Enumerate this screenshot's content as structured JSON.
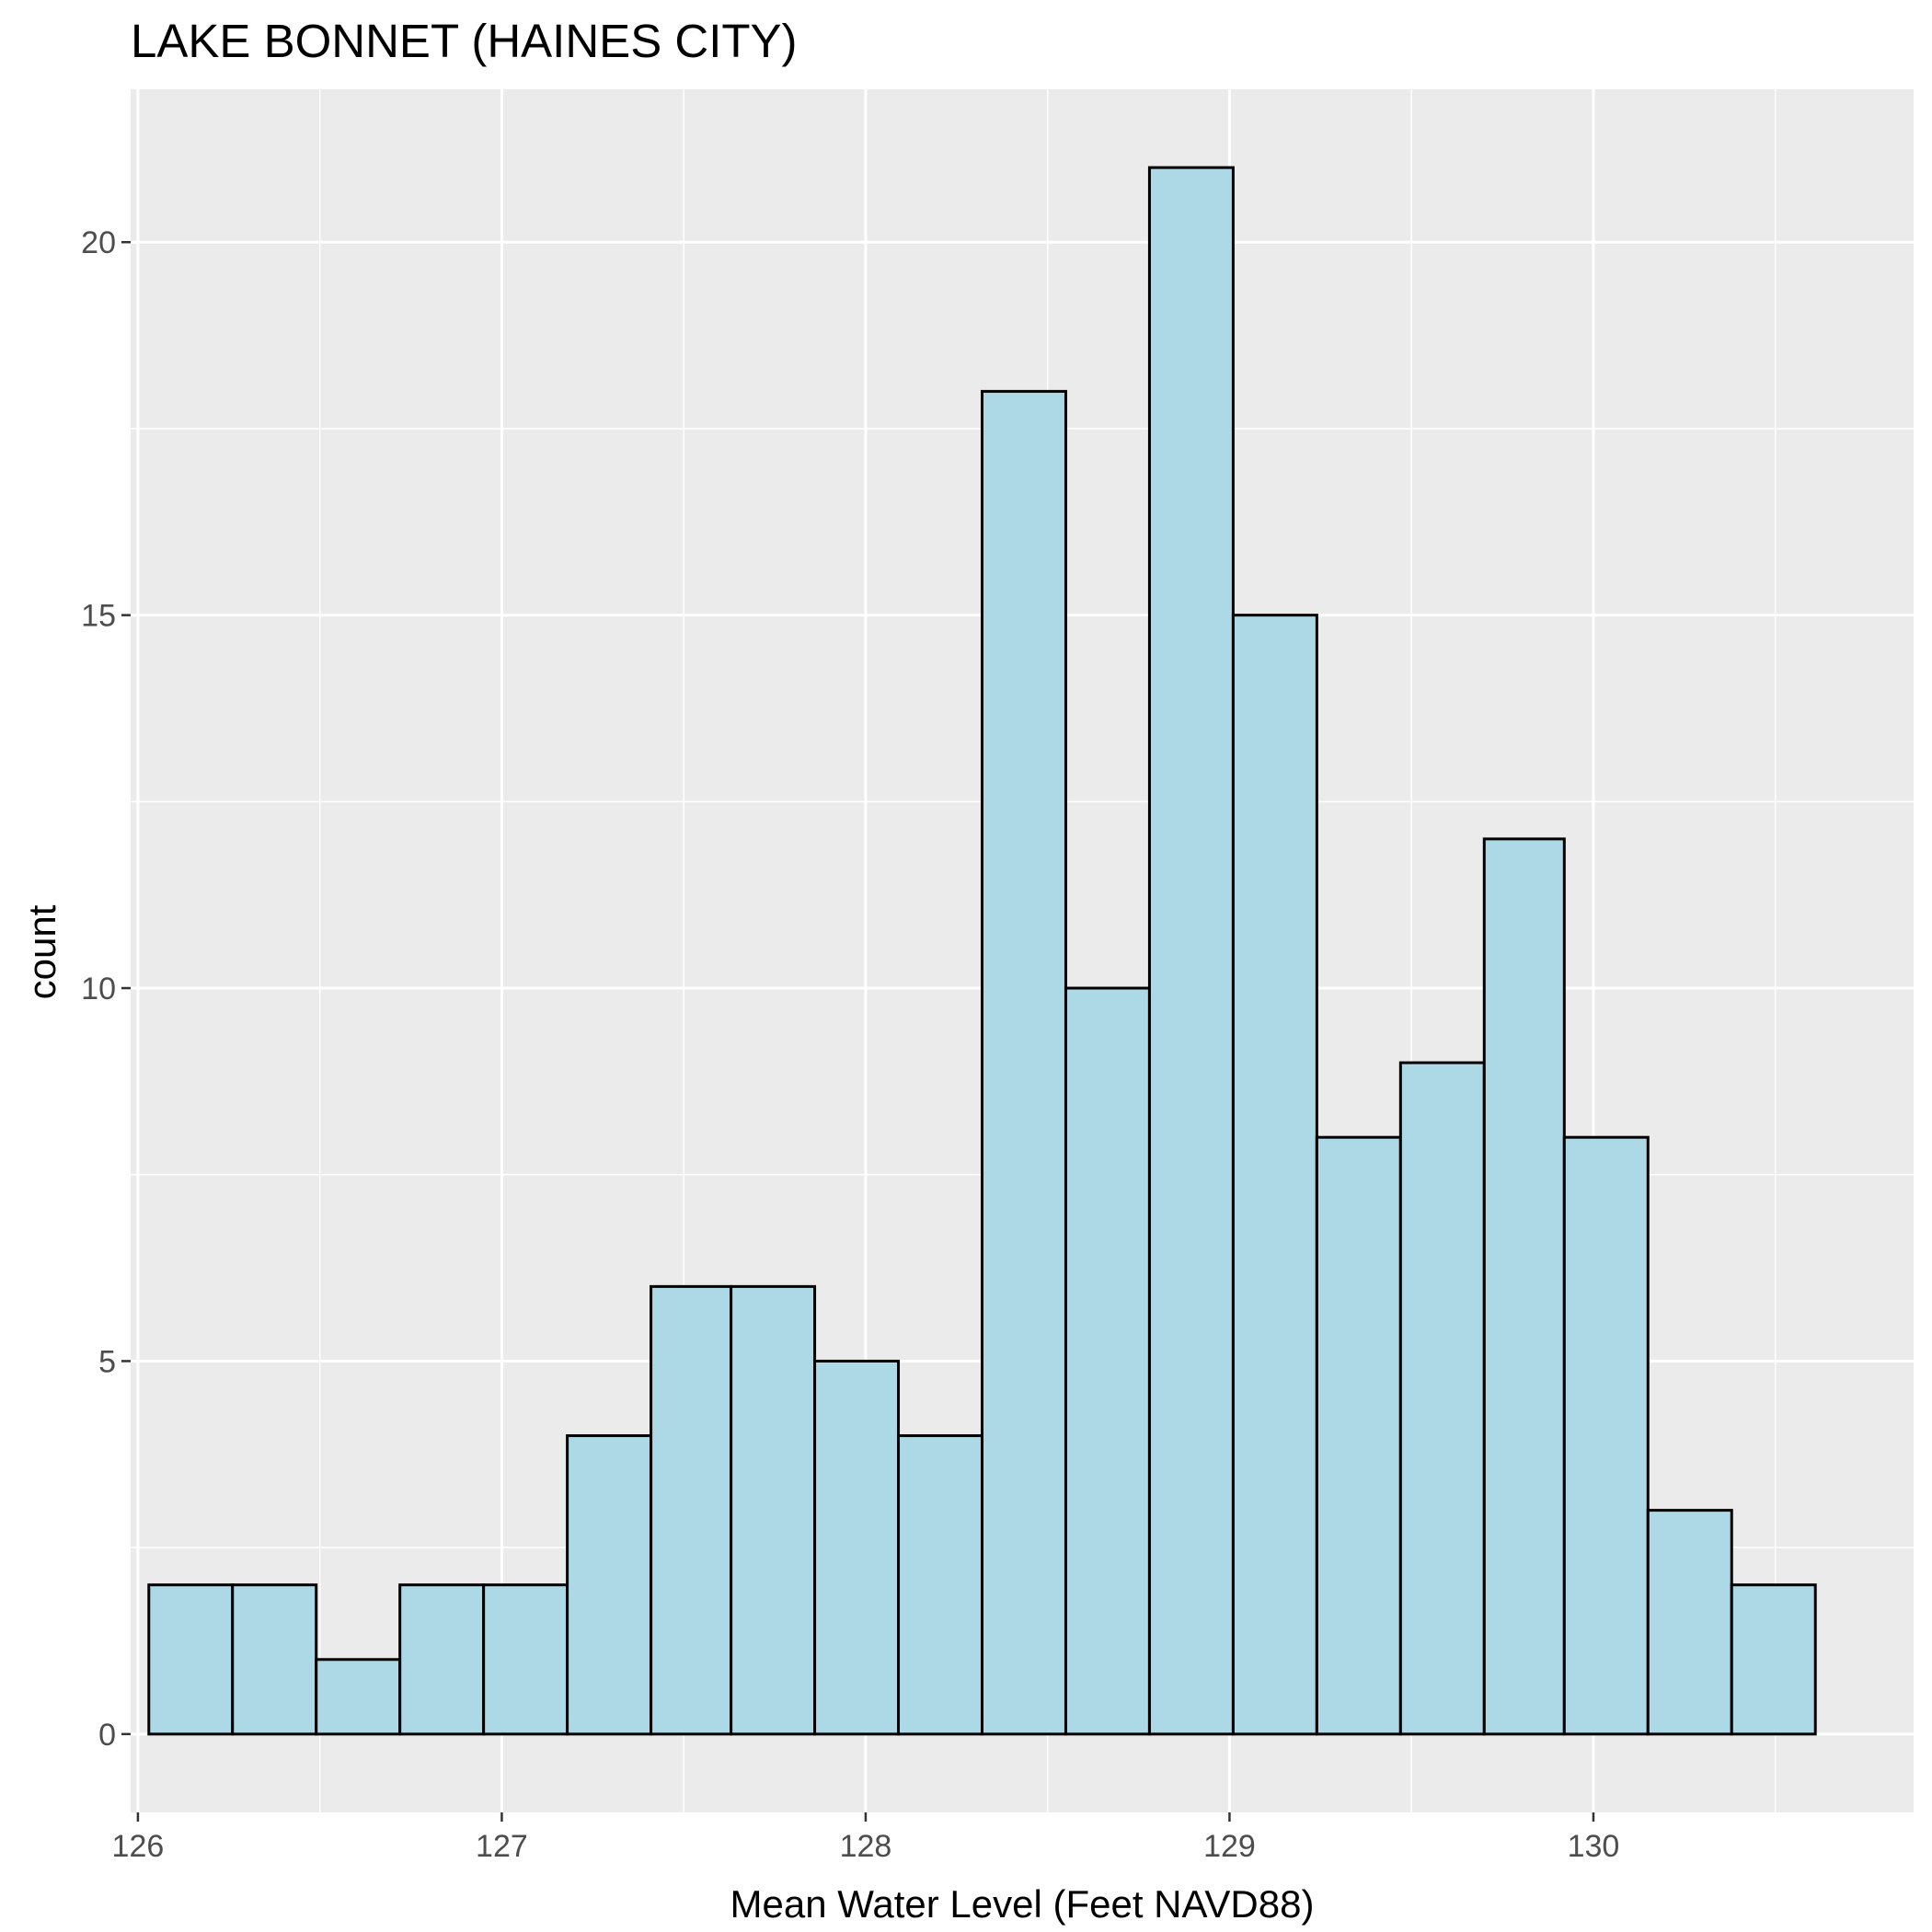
{
  "chart_data": {
    "type": "bar",
    "subtype": "histogram",
    "title": "LAKE BONNET (HAINES CITY)",
    "xlabel": "Mean Water Level (Feet NAVD88)",
    "ylabel": "count",
    "xlim": [
      125.98,
      130.88
    ],
    "ylim": [
      -1.05,
      22.05
    ],
    "x_ticks": [
      126,
      127,
      128,
      129,
      130
    ],
    "x_tick_labels": [
      "126",
      "127",
      "128",
      "129",
      "130"
    ],
    "y_ticks": [
      0,
      5,
      10,
      15,
      20
    ],
    "y_tick_labels": [
      "0",
      "5",
      "10",
      "15",
      "20"
    ],
    "bin_width": 0.229,
    "bins": [
      {
        "start": 126.03,
        "end": 126.26,
        "count": 2
      },
      {
        "start": 126.26,
        "end": 126.49,
        "count": 2
      },
      {
        "start": 126.49,
        "end": 126.72,
        "count": 1
      },
      {
        "start": 126.72,
        "end": 126.95,
        "count": 2
      },
      {
        "start": 126.95,
        "end": 127.18,
        "count": 2
      },
      {
        "start": 127.18,
        "end": 127.41,
        "count": 4
      },
      {
        "start": 127.41,
        "end": 127.63,
        "count": 6
      },
      {
        "start": 127.63,
        "end": 127.86,
        "count": 6
      },
      {
        "start": 127.86,
        "end": 128.09,
        "count": 5
      },
      {
        "start": 128.09,
        "end": 128.32,
        "count": 4
      },
      {
        "start": 128.32,
        "end": 128.55,
        "count": 18
      },
      {
        "start": 128.55,
        "end": 128.78,
        "count": 10
      },
      {
        "start": 128.78,
        "end": 129.01,
        "count": 21
      },
      {
        "start": 129.01,
        "end": 129.24,
        "count": 15
      },
      {
        "start": 129.24,
        "end": 129.47,
        "count": 8
      },
      {
        "start": 129.47,
        "end": 129.7,
        "count": 9
      },
      {
        "start": 129.7,
        "end": 129.92,
        "count": 12
      },
      {
        "start": 129.92,
        "end": 130.15,
        "count": 8
      },
      {
        "start": 130.15,
        "end": 130.38,
        "count": 3
      },
      {
        "start": 130.38,
        "end": 130.61,
        "count": 2
      }
    ],
    "grid": true,
    "colors": {
      "panel_background": "#ebebeb",
      "grid": "#ffffff",
      "bar_fill": "#add8e6",
      "bar_outline": "#000000"
    }
  }
}
